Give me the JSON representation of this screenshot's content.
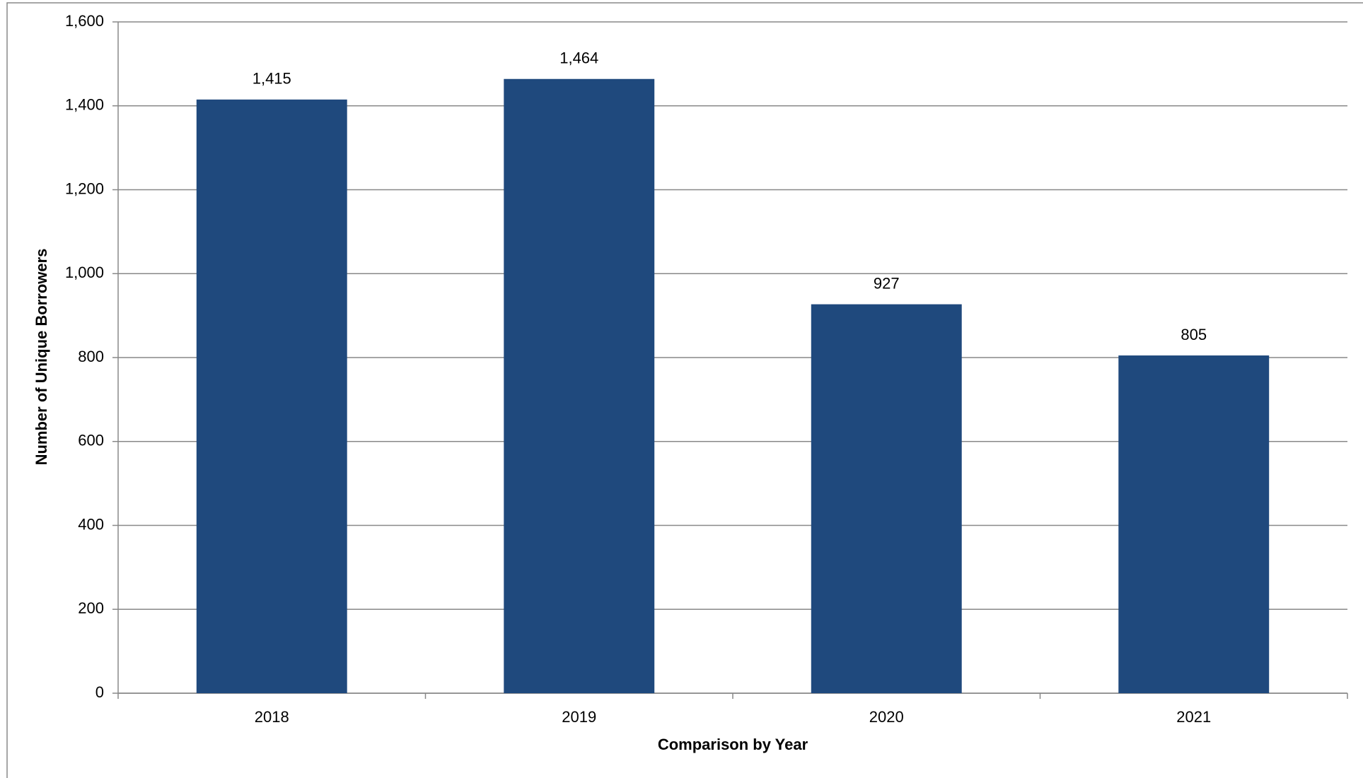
{
  "chart_data": {
    "type": "bar",
    "x_label": "Comparison by Year",
    "y_label": "Number of Unique Borrowers",
    "categories": [
      "2018",
      "2019",
      "2020",
      "2021"
    ],
    "values": [
      1415,
      1464,
      927,
      805
    ],
    "value_labels": [
      "1,415",
      "1,464",
      "927",
      "805"
    ],
    "color": "#1f497d",
    "ylim": [
      0,
      1600
    ],
    "yticks": [
      0,
      200,
      400,
      600,
      800,
      {
        "value": 1000,
        "label": "1,000"
      },
      {
        "value": 1200,
        "label": "1,200"
      },
      {
        "value": 1400,
        "label": "1,400"
      },
      {
        "value": 1600,
        "label": "1,600"
      }
    ],
    "grid": true
  }
}
